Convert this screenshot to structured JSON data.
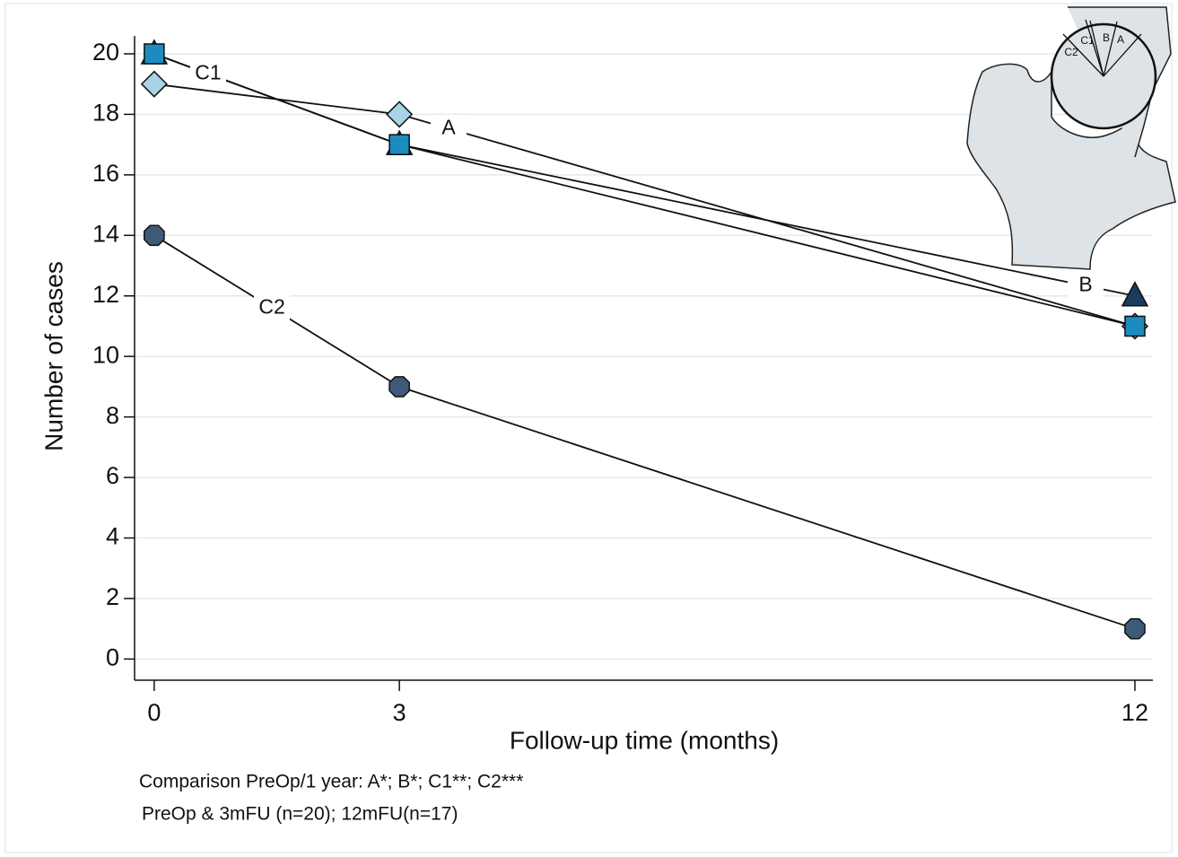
{
  "chart_data": {
    "type": "line",
    "x_label": "Follow-up time (months)",
    "y_label": "Number of cases",
    "x": [
      0,
      3,
      12
    ],
    "series": [
      {
        "name": "A",
        "color": "#a9d3e6",
        "marker": "diamond",
        "values": [
          19,
          18,
          11
        ]
      },
      {
        "name": "B",
        "color": "#1b3b5e",
        "marker": "triangle",
        "values": [
          20,
          17,
          12
        ]
      },
      {
        "name": "C1",
        "color": "#1c8cc0",
        "marker": "square",
        "values": [
          20,
          17,
          11
        ]
      },
      {
        "name": "C2",
        "color": "#3f5a78",
        "marker": "octagon",
        "values": [
          14,
          9,
          1
        ]
      }
    ],
    "xlim": [
      -0.24,
      12.22
    ],
    "ylim": [
      -0.7,
      20.8
    ],
    "xticks": [
      0,
      3,
      12
    ],
    "yticks": [
      0,
      2,
      4,
      6,
      8,
      10,
      12,
      14,
      16,
      18,
      20
    ],
    "grid": true,
    "notes": [
      "Comparison PreOp/1 year: A*; B*; C1**; C2***",
      "PreOp & 3mFU (n=20); 12mFU(n=17)"
    ],
    "inset_labels": [
      "C2",
      "C1",
      "B",
      "A"
    ]
  }
}
